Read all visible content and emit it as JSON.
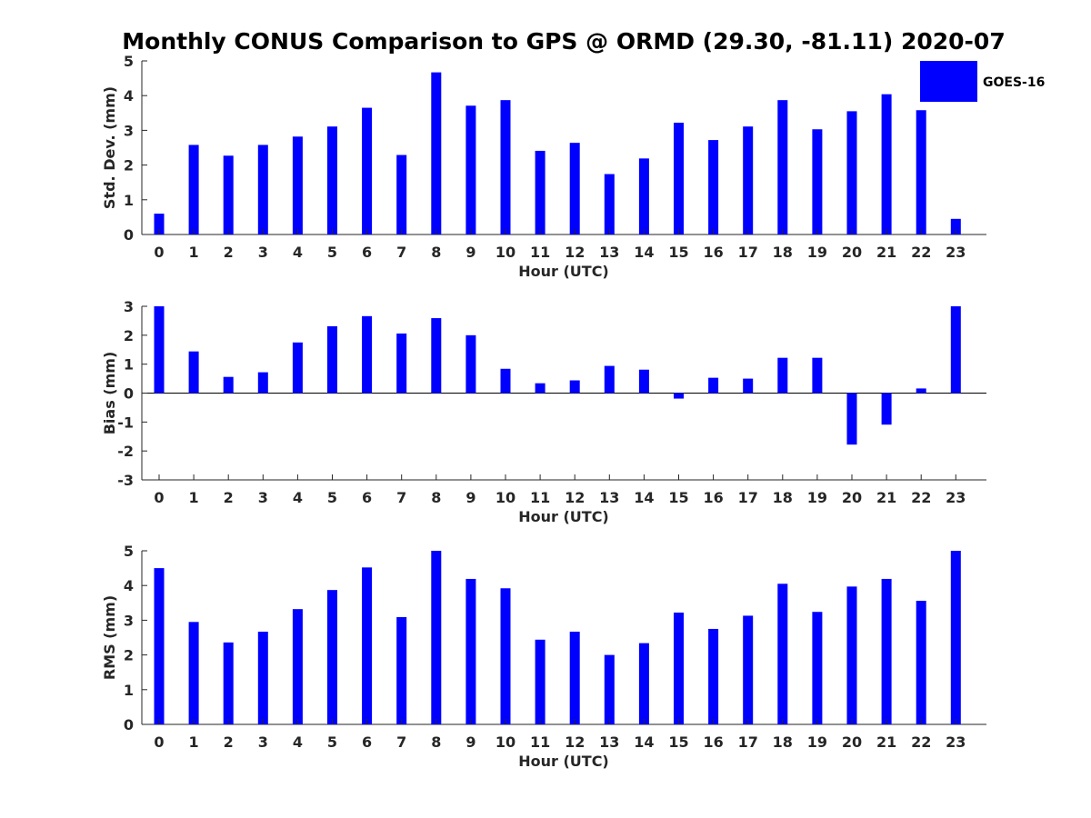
{
  "title": "Monthly CONUS Comparison to GPS @ ORMD (29.30, -81.11) 2020-07",
  "legend": {
    "label": "GOES-16",
    "color": "#0000ff"
  },
  "chart_data": [
    {
      "type": "bar",
      "name": "std-dev",
      "xlabel": "Hour (UTC)",
      "ylabel": "Std. Dev. (mm)",
      "categories": [
        "0",
        "1",
        "2",
        "3",
        "4",
        "5",
        "6",
        "7",
        "8",
        "9",
        "10",
        "11",
        "12",
        "13",
        "14",
        "15",
        "16",
        "17",
        "18",
        "19",
        "20",
        "21",
        "22",
        "23"
      ],
      "values": [
        0.6,
        2.58,
        2.27,
        2.58,
        2.82,
        3.11,
        3.65,
        2.29,
        4.67,
        3.71,
        3.87,
        2.41,
        2.64,
        1.74,
        2.19,
        3.22,
        2.72,
        3.11,
        3.87,
        3.03,
        3.55,
        4.04,
        3.58,
        0.45
      ],
      "ylim": [
        0,
        5
      ],
      "yticks": [
        0,
        1,
        2,
        3,
        4,
        5
      ],
      "color": "#0000ff"
    },
    {
      "type": "bar",
      "name": "bias",
      "xlabel": "Hour (UTC)",
      "ylabel": "Bias (mm)",
      "categories": [
        "0",
        "1",
        "2",
        "3",
        "4",
        "5",
        "6",
        "7",
        "8",
        "9",
        "10",
        "11",
        "12",
        "13",
        "14",
        "15",
        "16",
        "17",
        "18",
        "19",
        "20",
        "21",
        "22",
        "23"
      ],
      "values": [
        3.0,
        1.44,
        0.56,
        0.72,
        1.75,
        2.31,
        2.66,
        2.06,
        2.59,
        2.0,
        0.84,
        0.34,
        0.44,
        0.94,
        0.81,
        -0.19,
        0.53,
        0.5,
        1.22,
        1.22,
        -1.78,
        -1.09,
        0.16,
        3.0
      ],
      "ylim": [
        -3,
        3
      ],
      "yticks": [
        -3,
        -2,
        -1,
        0,
        1,
        2,
        3
      ],
      "color": "#0000ff"
    },
    {
      "type": "bar",
      "name": "rms",
      "xlabel": "Hour (UTC)",
      "ylabel": "RMS (mm)",
      "categories": [
        "0",
        "1",
        "2",
        "3",
        "4",
        "5",
        "6",
        "7",
        "8",
        "9",
        "10",
        "11",
        "12",
        "13",
        "14",
        "15",
        "16",
        "17",
        "18",
        "19",
        "20",
        "21",
        "22",
        "23"
      ],
      "values": [
        4.5,
        2.95,
        2.36,
        2.67,
        3.32,
        3.87,
        4.52,
        3.09,
        5.0,
        4.19,
        3.92,
        2.44,
        2.67,
        2.0,
        2.34,
        3.22,
        2.75,
        3.13,
        4.05,
        3.24,
        3.97,
        4.19,
        3.56,
        5.0
      ],
      "ylim": [
        0,
        5
      ],
      "yticks": [
        0,
        1,
        2,
        3,
        4,
        5
      ],
      "color": "#0000ff"
    }
  ]
}
